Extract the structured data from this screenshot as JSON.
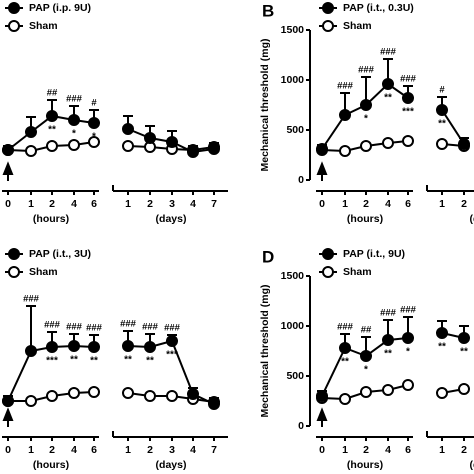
{
  "chart_data": [
    {
      "type": "line",
      "categories": [
        "0",
        "1",
        "2",
        "4",
        "6",
        "1",
        "2",
        "3",
        "4",
        "7"
      ],
      "xlabels": [
        "(hours)",
        "(days)"
      ],
      "ylim": [
        0,
        1500
      ],
      "series": [
        {
          "name": "PAP (i.p. 9U)",
          "color": "#000000",
          "marker_fill": "#000000",
          "values": [
            300,
            480,
            640,
            600,
            570,
            510,
            420,
            380,
            280,
            310
          ],
          "errors": [
            40,
            150,
            160,
            140,
            130,
            130,
            120,
            110,
            60,
            60
          ],
          "sig_above": [
            null,
            null,
            "##",
            "###",
            "#",
            null,
            null,
            null,
            null,
            null
          ],
          "sig_below": [
            null,
            null,
            "**",
            "*",
            "*",
            null,
            null,
            null,
            null,
            null
          ]
        },
        {
          "name": "Sham",
          "color": "#000000",
          "marker_fill": "#ffffff",
          "values": [
            300,
            290,
            340,
            350,
            380,
            340,
            330,
            310,
            300,
            330
          ]
        }
      ]
    },
    {
      "type": "line",
      "panel": "B",
      "ylabel": "Mechanical threshold (mg)",
      "categories": [
        "0",
        "1",
        "2",
        "4",
        "6",
        "1",
        "2"
      ],
      "xlabels": [
        "(hours)",
        "(days)"
      ],
      "ylim": [
        0,
        1500
      ],
      "yticks": [
        0,
        500,
        1000,
        1500
      ],
      "series": [
        {
          "name": "PAP (i.t., 0.3U)",
          "color": "#000000",
          "marker_fill": "#000000",
          "values": [
            310,
            650,
            750,
            960,
            820,
            700,
            360
          ],
          "errors": [
            40,
            220,
            280,
            250,
            120,
            130,
            60
          ],
          "sig_above": [
            null,
            "###",
            "###",
            "###",
            "###",
            "#",
            null
          ],
          "sig_below": [
            null,
            null,
            "*",
            "**",
            "***",
            "**",
            null
          ]
        },
        {
          "name": "Sham",
          "color": "#000000",
          "marker_fill": "#ffffff",
          "values": [
            300,
            290,
            340,
            370,
            390,
            360,
            340
          ]
        }
      ]
    },
    {
      "type": "line",
      "categories": [
        "0",
        "1",
        "2",
        "4",
        "6",
        "1",
        "2",
        "3",
        "4",
        "7"
      ],
      "xlabels": [
        "(hours)",
        "(days)"
      ],
      "ylim": [
        0,
        1500
      ],
      "series": [
        {
          "name": "PAP (i.t., 3U)",
          "color": "#000000",
          "marker_fill": "#000000",
          "values": [
            250,
            750,
            790,
            800,
            790,
            800,
            790,
            850,
            320,
            220
          ],
          "errors": [
            50,
            450,
            150,
            120,
            120,
            150,
            130,
            60,
            60,
            60
          ],
          "sig_above": [
            null,
            "###",
            "###",
            "###",
            "###",
            "###",
            "###",
            "###",
            null,
            null
          ],
          "sig_below": [
            null,
            null,
            "***",
            "**",
            "**",
            "**",
            "**",
            "***",
            null,
            null
          ]
        },
        {
          "name": "Sham",
          "color": "#000000",
          "marker_fill": "#ffffff",
          "values": [
            250,
            250,
            300,
            330,
            340,
            330,
            300,
            300,
            270,
            240
          ]
        }
      ]
    },
    {
      "type": "line",
      "panel": "D",
      "ylabel": "Mechanical threshold (mg)",
      "categories": [
        "0",
        "1",
        "2",
        "4",
        "6",
        "1",
        "2"
      ],
      "xlabels": [
        "(hours)",
        "(days)"
      ],
      "ylim": [
        0,
        1500
      ],
      "yticks": [
        0,
        500,
        1000,
        1500
      ],
      "series": [
        {
          "name": "PAP (i.t., 9U)",
          "color": "#000000",
          "marker_fill": "#000000",
          "values": [
            300,
            780,
            700,
            860,
            880,
            930,
            880
          ],
          "errors": [
            50,
            140,
            190,
            200,
            210,
            120,
            120
          ],
          "sig_above": [
            null,
            "###",
            "##",
            "###",
            "###",
            null,
            null
          ],
          "sig_below": [
            null,
            "**",
            "*",
            "**",
            "*",
            "**",
            "**"
          ]
        },
        {
          "name": "Sham",
          "color": "#000000",
          "marker_fill": "#ffffff",
          "values": [
            280,
            270,
            340,
            360,
            410,
            330,
            370
          ]
        }
      ]
    }
  ]
}
